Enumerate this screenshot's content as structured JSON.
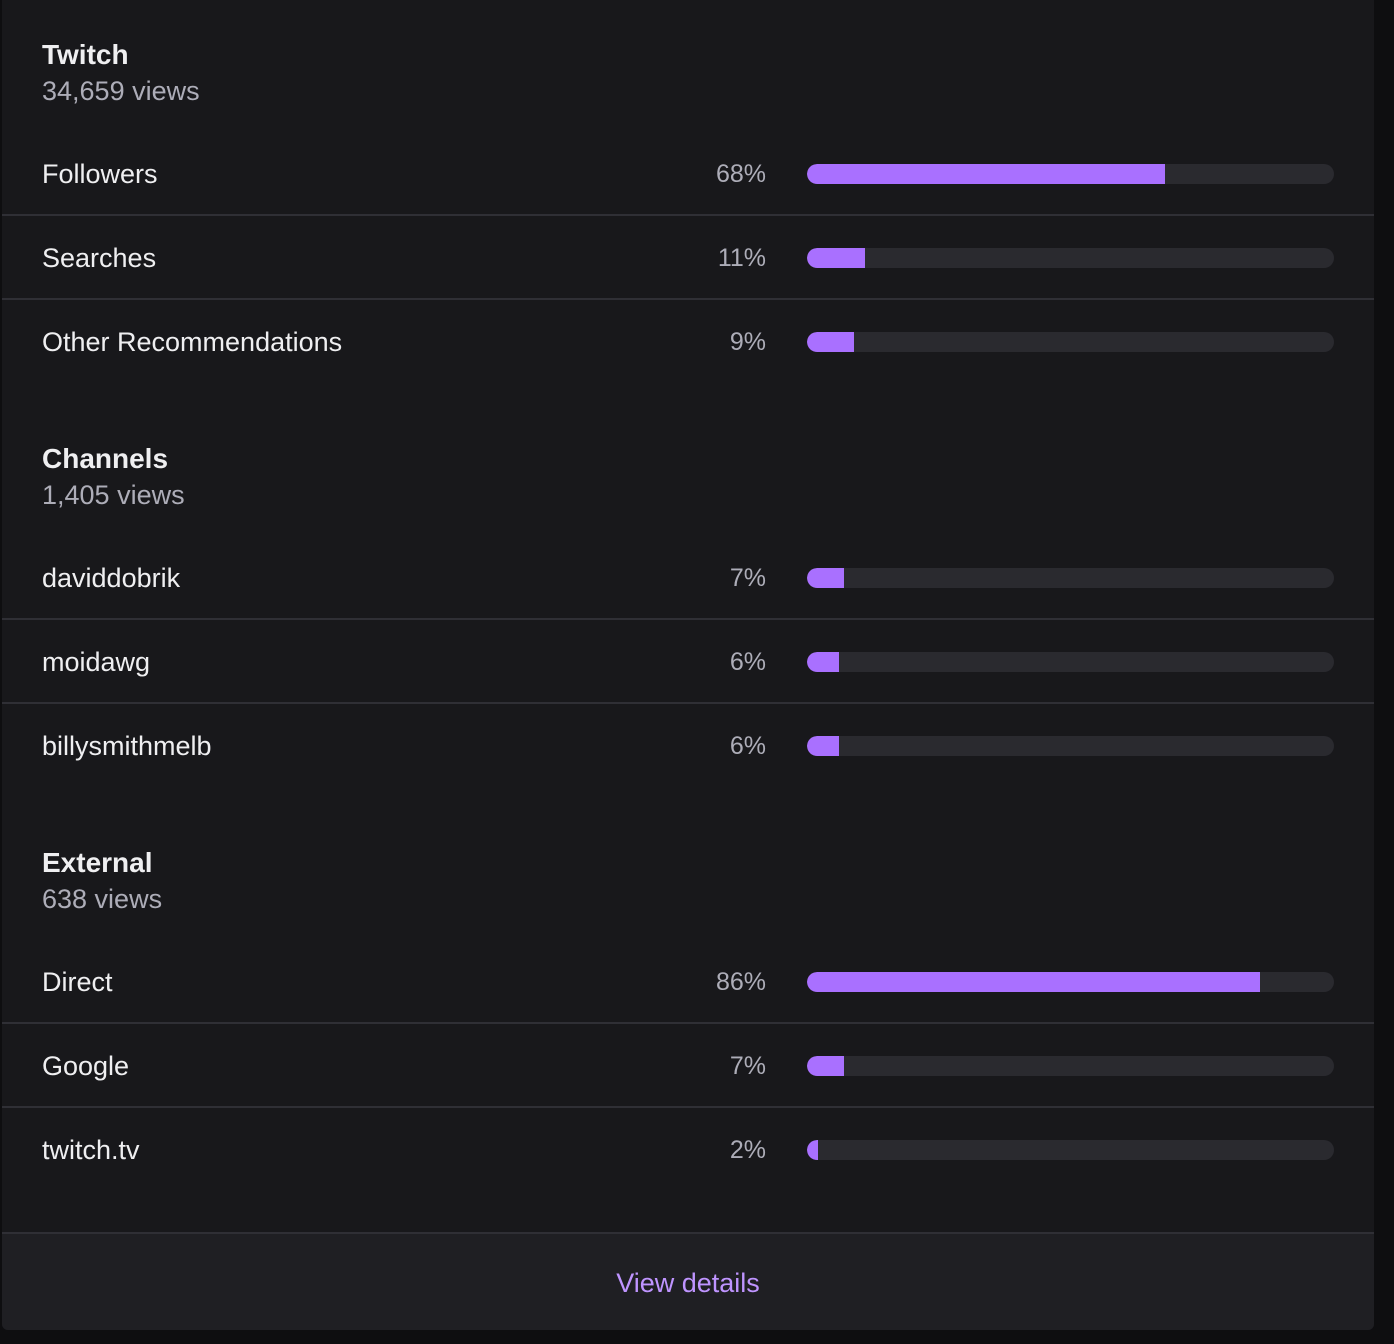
{
  "sections": [
    {
      "title": "Twitch",
      "views": "34,659 views",
      "rows": [
        {
          "label": "Followers",
          "pct_label": "68%",
          "value": 68
        },
        {
          "label": "Searches",
          "pct_label": "11%",
          "value": 11
        },
        {
          "label": "Other Recommendations",
          "pct_label": "9%",
          "value": 9
        }
      ]
    },
    {
      "title": "Channels",
      "views": "1,405 views",
      "rows": [
        {
          "label": "daviddobrik",
          "pct_label": "7%",
          "value": 7
        },
        {
          "label": "moidawg",
          "pct_label": "6%",
          "value": 6
        },
        {
          "label": "billysmithmelb",
          "pct_label": "6%",
          "value": 6
        }
      ]
    },
    {
      "title": "External",
      "views": "638 views",
      "rows": [
        {
          "label": "Direct",
          "pct_label": "86%",
          "value": 86
        },
        {
          "label": "Google",
          "pct_label": "7%",
          "value": 7
        },
        {
          "label": "twitch.tv",
          "pct_label": "2%",
          "value": 2
        }
      ]
    }
  ],
  "footer": {
    "view_details_label": "View details"
  },
  "colors": {
    "accent": "#a970ff",
    "link": "#bf94ff"
  }
}
